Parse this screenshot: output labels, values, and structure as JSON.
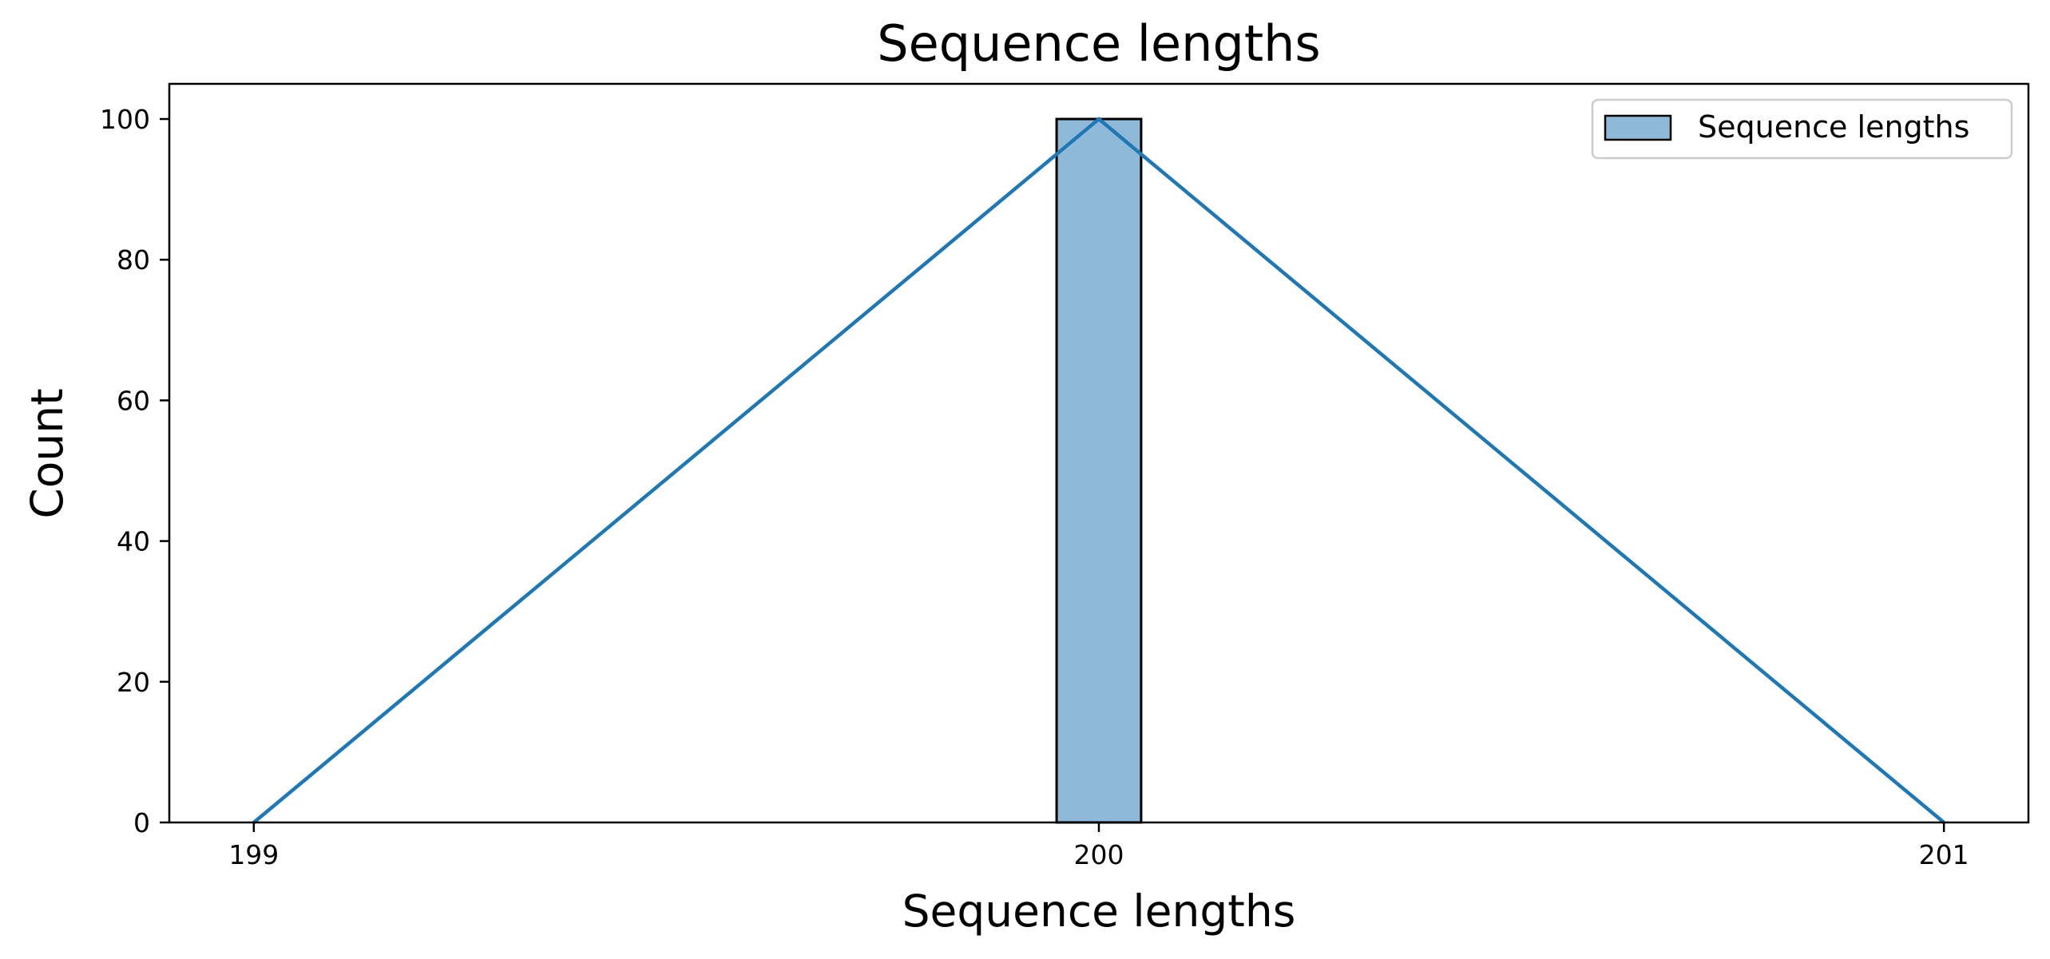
{
  "chart_data": {
    "type": "bar",
    "title": "Sequence lengths",
    "xlabel": "Sequence lengths",
    "ylabel": "Count",
    "xlim": [
      198.9,
      201.1
    ],
    "ylim": [
      0,
      105
    ],
    "x_ticks": [
      199,
      200,
      201
    ],
    "y_ticks": [
      0,
      20,
      40,
      60,
      80,
      100
    ],
    "grid": false,
    "legend": {
      "position": "top-right",
      "entries": [
        "Sequence lengths"
      ]
    },
    "histogram": {
      "bins": [
        {
          "x0": 199.95,
          "x1": 200.05,
          "count": 100
        }
      ]
    },
    "kde_line": {
      "x": [
        199,
        200,
        201
      ],
      "y": [
        0,
        100,
        0
      ]
    },
    "colors": {
      "bar_fill": "#8fb9d9",
      "line": "#1f77b4",
      "edge": "#000000"
    }
  }
}
